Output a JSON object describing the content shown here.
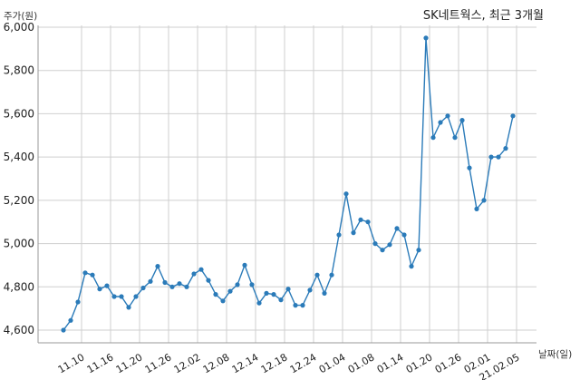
{
  "chart_data": {
    "type": "line",
    "title": "SK네트웍스, 최근 3개월",
    "ylabel": "주가(원)",
    "xlabel": "날짜(일)",
    "ylim": [
      4560,
      6000
    ],
    "yticks": [
      4600,
      4800,
      5000,
      5200,
      5400,
      5600,
      5800,
      6000
    ],
    "ytick_labels": [
      "4,600",
      "4,800",
      "5,000",
      "5,200",
      "5,400",
      "5,600",
      "5,800",
      "6,000"
    ],
    "x_ticks": [
      {
        "index": 2.5,
        "label": "11.10"
      },
      {
        "index": 6.5,
        "label": "11.16"
      },
      {
        "index": 10.5,
        "label": "11.20"
      },
      {
        "index": 14.5,
        "label": "11.26"
      },
      {
        "index": 18.5,
        "label": "12.02"
      },
      {
        "index": 22.5,
        "label": "12.08"
      },
      {
        "index": 26.5,
        "label": "12.14"
      },
      {
        "index": 30.5,
        "label": "12.18"
      },
      {
        "index": 34.5,
        "label": "12.24"
      },
      {
        "index": 38.5,
        "label": "01.04"
      },
      {
        "index": 42.5,
        "label": "01.08"
      },
      {
        "index": 46.5,
        "label": "01.14"
      },
      {
        "index": 50.5,
        "label": "01.20"
      },
      {
        "index": 54.5,
        "label": "01.26"
      },
      {
        "index": 58.5,
        "label": "02.01"
      },
      {
        "index": 62.5,
        "label": "21.02.05"
      }
    ],
    "grid": true,
    "series": [
      {
        "color": "#2b7bb9",
        "values": [
          4600,
          4645,
          4730,
          4865,
          4855,
          4790,
          4805,
          4755,
          4755,
          4705,
          4755,
          4795,
          4825,
          4895,
          4820,
          4800,
          4815,
          4800,
          4860,
          4880,
          4830,
          4765,
          4735,
          4780,
          4810,
          4900,
          4810,
          4725,
          4770,
          4765,
          4740,
          4790,
          4715,
          4715,
          4785,
          4855,
          4770,
          4855,
          5040,
          5230,
          5050,
          5110,
          5100,
          5000,
          4970,
          4995,
          5070,
          5040,
          4895,
          4970,
          5950,
          5490,
          5560,
          5590,
          5490,
          5570,
          5350,
          5160,
          5200,
          5400,
          5400,
          5440,
          5590
        ]
      }
    ]
  }
}
